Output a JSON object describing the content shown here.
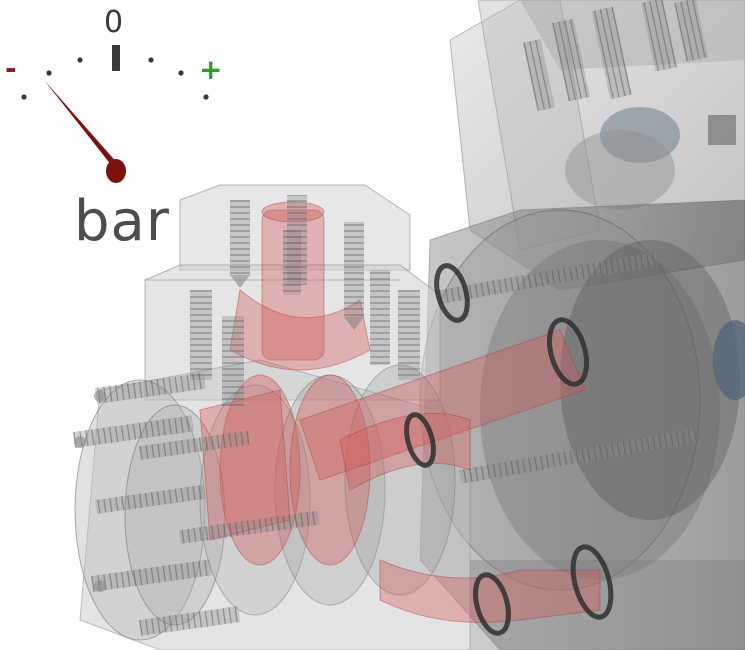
{
  "gauge": {
    "zero_label": "0",
    "minus_label": "-",
    "plus_label": "+",
    "unit_label": "bar",
    "needle_icon": "pressure-needle-icon",
    "colors": {
      "minus": "#8b1a1a",
      "plus": "#2e9a2e",
      "needle": "#7a1010",
      "text": "#4d4d4d"
    }
  },
  "model": {
    "body_color": "#9a9a9a",
    "fluid_color": "#d35a5a",
    "seal_color": "#333333"
  }
}
